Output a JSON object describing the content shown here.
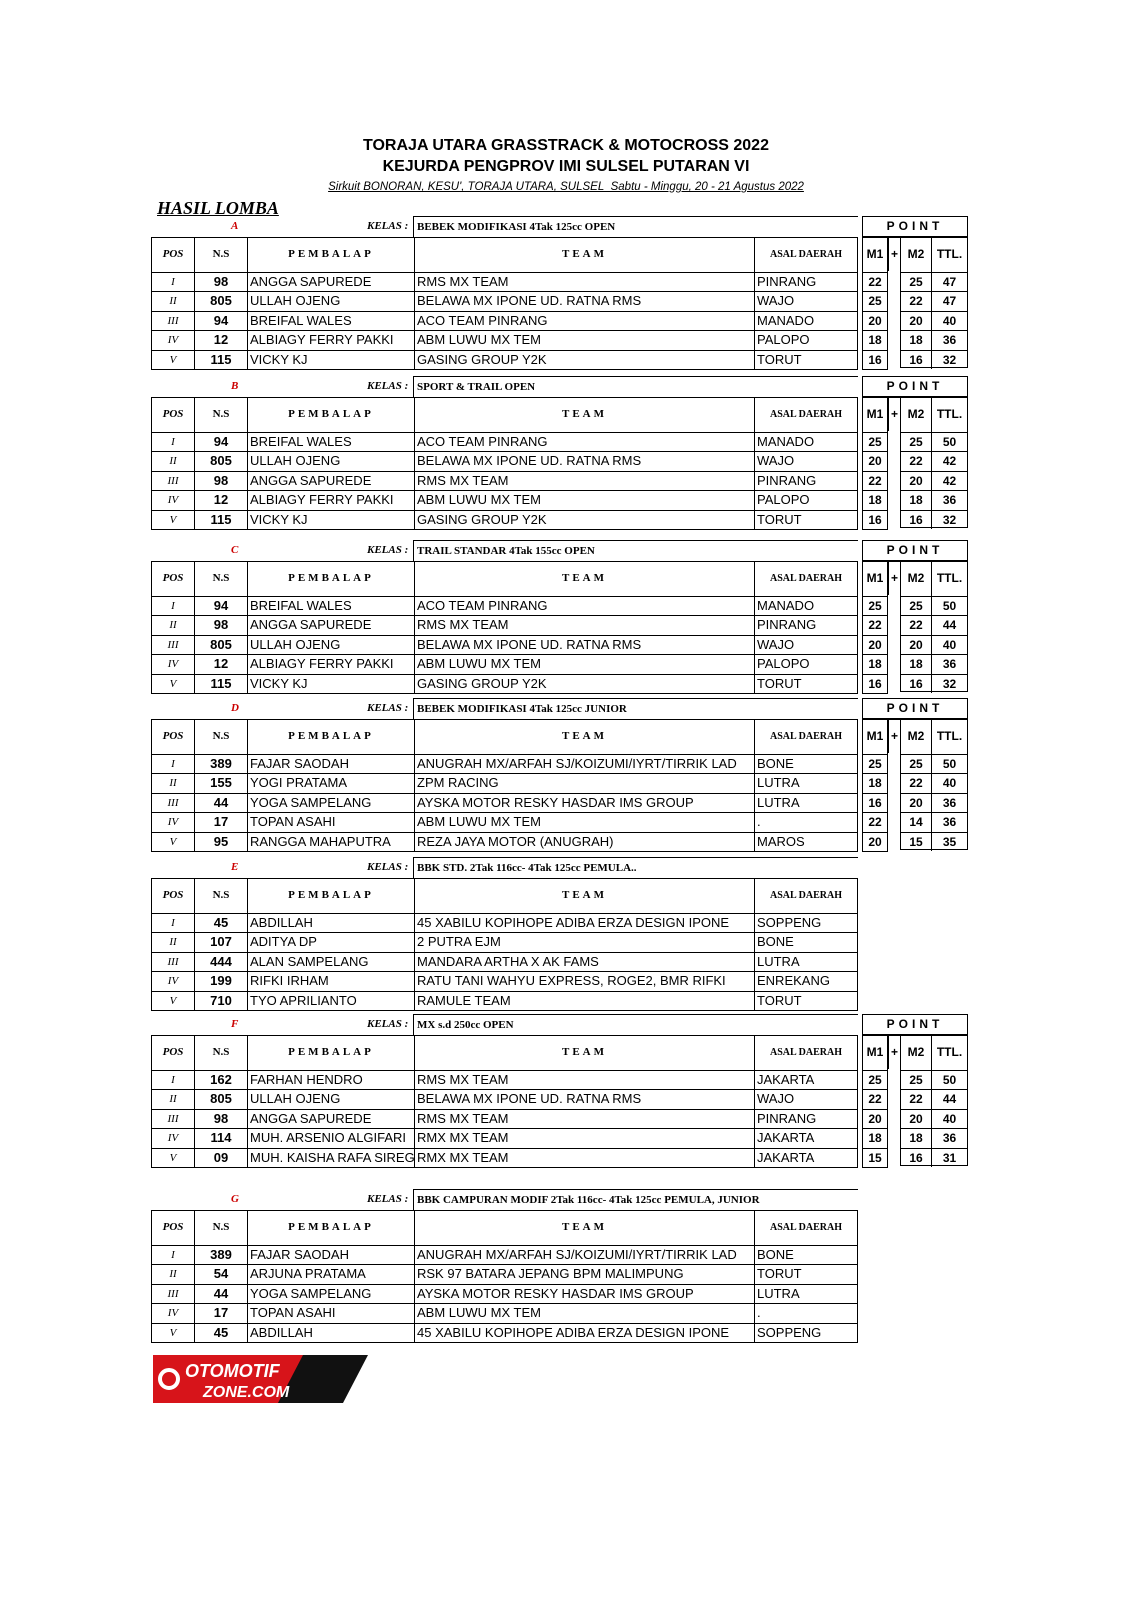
{
  "header": {
    "title1": "TORAJA UTARA GRASSTRACK & MOTOCROSS 2022",
    "title2": "KEJURDA PENGPROV IMI SULSEL PUTARAN VI",
    "subtitle": "Sirkuit  BONORAN, KESU', TORAJA UTARA, SULSEL_Sabtu - Minggu, 20 - 21 Agustus 2022",
    "hasil": "HASIL LOMBA"
  },
  "labels": {
    "kelas": "KELAS :",
    "point": "POINT",
    "pos": "POS",
    "ns": "N.S",
    "pembalap": "PEMBALAP",
    "team": "TEAM",
    "asal": "ASAL DAERAH",
    "m1": "M1",
    "plus": "+",
    "m2": "M2",
    "ttl": "TTL."
  },
  "sections": [
    {
      "letter": "A",
      "kelas": "BEBEK MODIFIKASI 4Tak 125cc OPEN",
      "rows": [
        [
          "I",
          "98",
          "ANGGA SAPUREDE",
          "RMS MX TEAM",
          "PINRANG",
          "22",
          "25",
          "47"
        ],
        [
          "II",
          "805",
          "ULLAH OJENG",
          "BELAWA MX IPONE UD. RATNA RMS",
          "WAJO",
          "25",
          "22",
          "47"
        ],
        [
          "III",
          "94",
          "BREIFAL WALES",
          "ACO TEAM PINRANG",
          "MANADO",
          "20",
          "20",
          "40"
        ],
        [
          "IV",
          "12",
          "ALBIAGY FERRY PAKKI",
          "ABM LUWU MX TEM",
          "PALOPO",
          "18",
          "18",
          "36"
        ],
        [
          "V",
          "115",
          "VICKY KJ",
          "GASING GROUP Y2K",
          "TORUT",
          "16",
          "16",
          "32"
        ]
      ]
    },
    {
      "letter": "B",
      "kelas": "SPORT & TRAIL OPEN",
      "rows": [
        [
          "I",
          "94",
          "BREIFAL WALES",
          "ACO TEAM PINRANG",
          "MANADO",
          "25",
          "25",
          "50"
        ],
        [
          "II",
          "805",
          "ULLAH OJENG",
          "BELAWA MX IPONE UD. RATNA RMS",
          "WAJO",
          "20",
          "22",
          "42"
        ],
        [
          "III",
          "98",
          "ANGGA SAPUREDE",
          "RMS MX TEAM",
          "PINRANG",
          "22",
          "20",
          "42"
        ],
        [
          "IV",
          "12",
          "ALBIAGY FERRY PAKKI",
          "ABM LUWU MX TEM",
          "PALOPO",
          "18",
          "18",
          "36"
        ],
        [
          "V",
          "115",
          "VICKY KJ",
          "GASING GROUP Y2K",
          "TORUT",
          "16",
          "16",
          "32"
        ]
      ]
    },
    {
      "letter": "C",
      "kelas": "TRAIL STANDAR 4Tak 155cc OPEN",
      "rows": [
        [
          "I",
          "94",
          "BREIFAL WALES",
          "ACO TEAM PINRANG",
          "MANADO",
          "25",
          "25",
          "50"
        ],
        [
          "II",
          "98",
          "ANGGA SAPUREDE",
          "RMS MX TEAM",
          "PINRANG",
          "22",
          "22",
          "44"
        ],
        [
          "III",
          "805",
          "ULLAH OJENG",
          "BELAWA MX IPONE UD. RATNA RMS",
          "WAJO",
          "20",
          "20",
          "40"
        ],
        [
          "IV",
          "12",
          "ALBIAGY FERRY PAKKI",
          "ABM LUWU MX TEM",
          "PALOPO",
          "18",
          "18",
          "36"
        ],
        [
          "V",
          "115",
          "VICKY KJ",
          "GASING GROUP Y2K",
          "TORUT",
          "16",
          "16",
          "32"
        ]
      ]
    },
    {
      "letter": "D",
      "kelas": "BEBEK MODIFIKASI 4Tak 125cc JUNIOR",
      "rows": [
        [
          "I",
          "389",
          "FAJAR SAODAH",
          "ANUGRAH MX/ARFAH SJ/KOIZUMI/IYRT/TIRRIK LAD",
          "BONE",
          "25",
          "25",
          "50"
        ],
        [
          "II",
          "155",
          "YOGI PRATAMA",
          "ZPM RACING",
          "LUTRA",
          "18",
          "22",
          "40"
        ],
        [
          "III",
          "44",
          "YOGA SAMPELANG",
          "AYSKA MOTOR RESKY HASDAR IMS GROUP",
          "LUTRA",
          "16",
          "20",
          "36"
        ],
        [
          "IV",
          "17",
          "TOPAN ASAHI",
          "ABM LUWU MX TEM",
          ".",
          "22",
          "14",
          "36"
        ],
        [
          "V",
          "95",
          "RANGGA MAHAPUTRA",
          "REZA JAYA MOTOR (ANUGRAH)",
          "MAROS",
          "20",
          "15",
          "35"
        ]
      ]
    },
    {
      "letter": "E",
      "kelas": "BBK STD. 2Tak 116cc- 4Tak 125cc PEMULA..",
      "rows": [
        [
          "I",
          "45",
          "ABDILLAH",
          "45 XABILU KOPIHOPE ADIBA ERZA DESIGN IPONE",
          "SOPPENG"
        ],
        [
          "II",
          "107",
          "ADITYA DP",
          "2 PUTRA EJM",
          "BONE"
        ],
        [
          "III",
          "444",
          "ALAN SAMPELANG",
          "MANDARA ARTHA X AK FAMS",
          "LUTRA"
        ],
        [
          "IV",
          "199",
          "RIFKI IRHAM",
          "RATU TANI WAHYU EXPRESS, ROGE2, BMR RIFKI",
          "ENREKANG"
        ],
        [
          "V",
          "710",
          "TYO APRILIANTO",
          "RAMULE TEAM",
          "TORUT"
        ]
      ]
    },
    {
      "letter": "F",
      "kelas": "MX s.d 250cc OPEN",
      "rows": [
        [
          "I",
          "162",
          "FARHAN HENDRO",
          "RMS MX TEAM",
          "JAKARTA",
          "25",
          "25",
          "50"
        ],
        [
          "II",
          "805",
          "ULLAH OJENG",
          "BELAWA MX IPONE UD. RATNA RMS",
          "WAJO",
          "22",
          "22",
          "44"
        ],
        [
          "III",
          "98",
          "ANGGA SAPUREDE",
          "RMS MX TEAM",
          "PINRANG",
          "20",
          "20",
          "40"
        ],
        [
          "IV",
          "114",
          "MUH. ARSENIO ALGIFARI",
          "RMX MX TEAM",
          "JAKARTA",
          "18",
          "18",
          "36"
        ],
        [
          "V",
          "09",
          "MUH. KAISHA RAFA SIREGAR",
          "RMX MX TEAM",
          "JAKARTA",
          "15",
          "16",
          "31"
        ]
      ]
    },
    {
      "letter": "G",
      "kelas": "BBK CAMPURAN MODIF 2Tak 116cc- 4Tak 125cc PEMULA, JUNIOR",
      "rows": [
        [
          "I",
          "389",
          "FAJAR SAODAH",
          "ANUGRAH MX/ARFAH SJ/KOIZUMI/IYRT/TIRRIK LAD",
          "BONE"
        ],
        [
          "II",
          "54",
          "ARJUNA PRATAMA",
          "RSK 97 BATARA JEPANG BPM MALIMPUNG",
          "TORUT"
        ],
        [
          "III",
          "44",
          "YOGA SAMPELANG",
          "AYSKA MOTOR RESKY HASDAR IMS GROUP",
          "LUTRA"
        ],
        [
          "IV",
          "17",
          "TOPAN ASAHI",
          "ABM LUWU MX TEM",
          "."
        ],
        [
          "V",
          "45",
          "ABDILLAH",
          "45 XABILU KOPIHOPE ADIBA ERZA DESIGN IPONE",
          "SOPPENG"
        ]
      ]
    }
  ],
  "logo": {
    "text": "OTOMOTIFZONE.COM",
    "colors": {
      "red": "#d7141a",
      "black": "#111111"
    }
  }
}
